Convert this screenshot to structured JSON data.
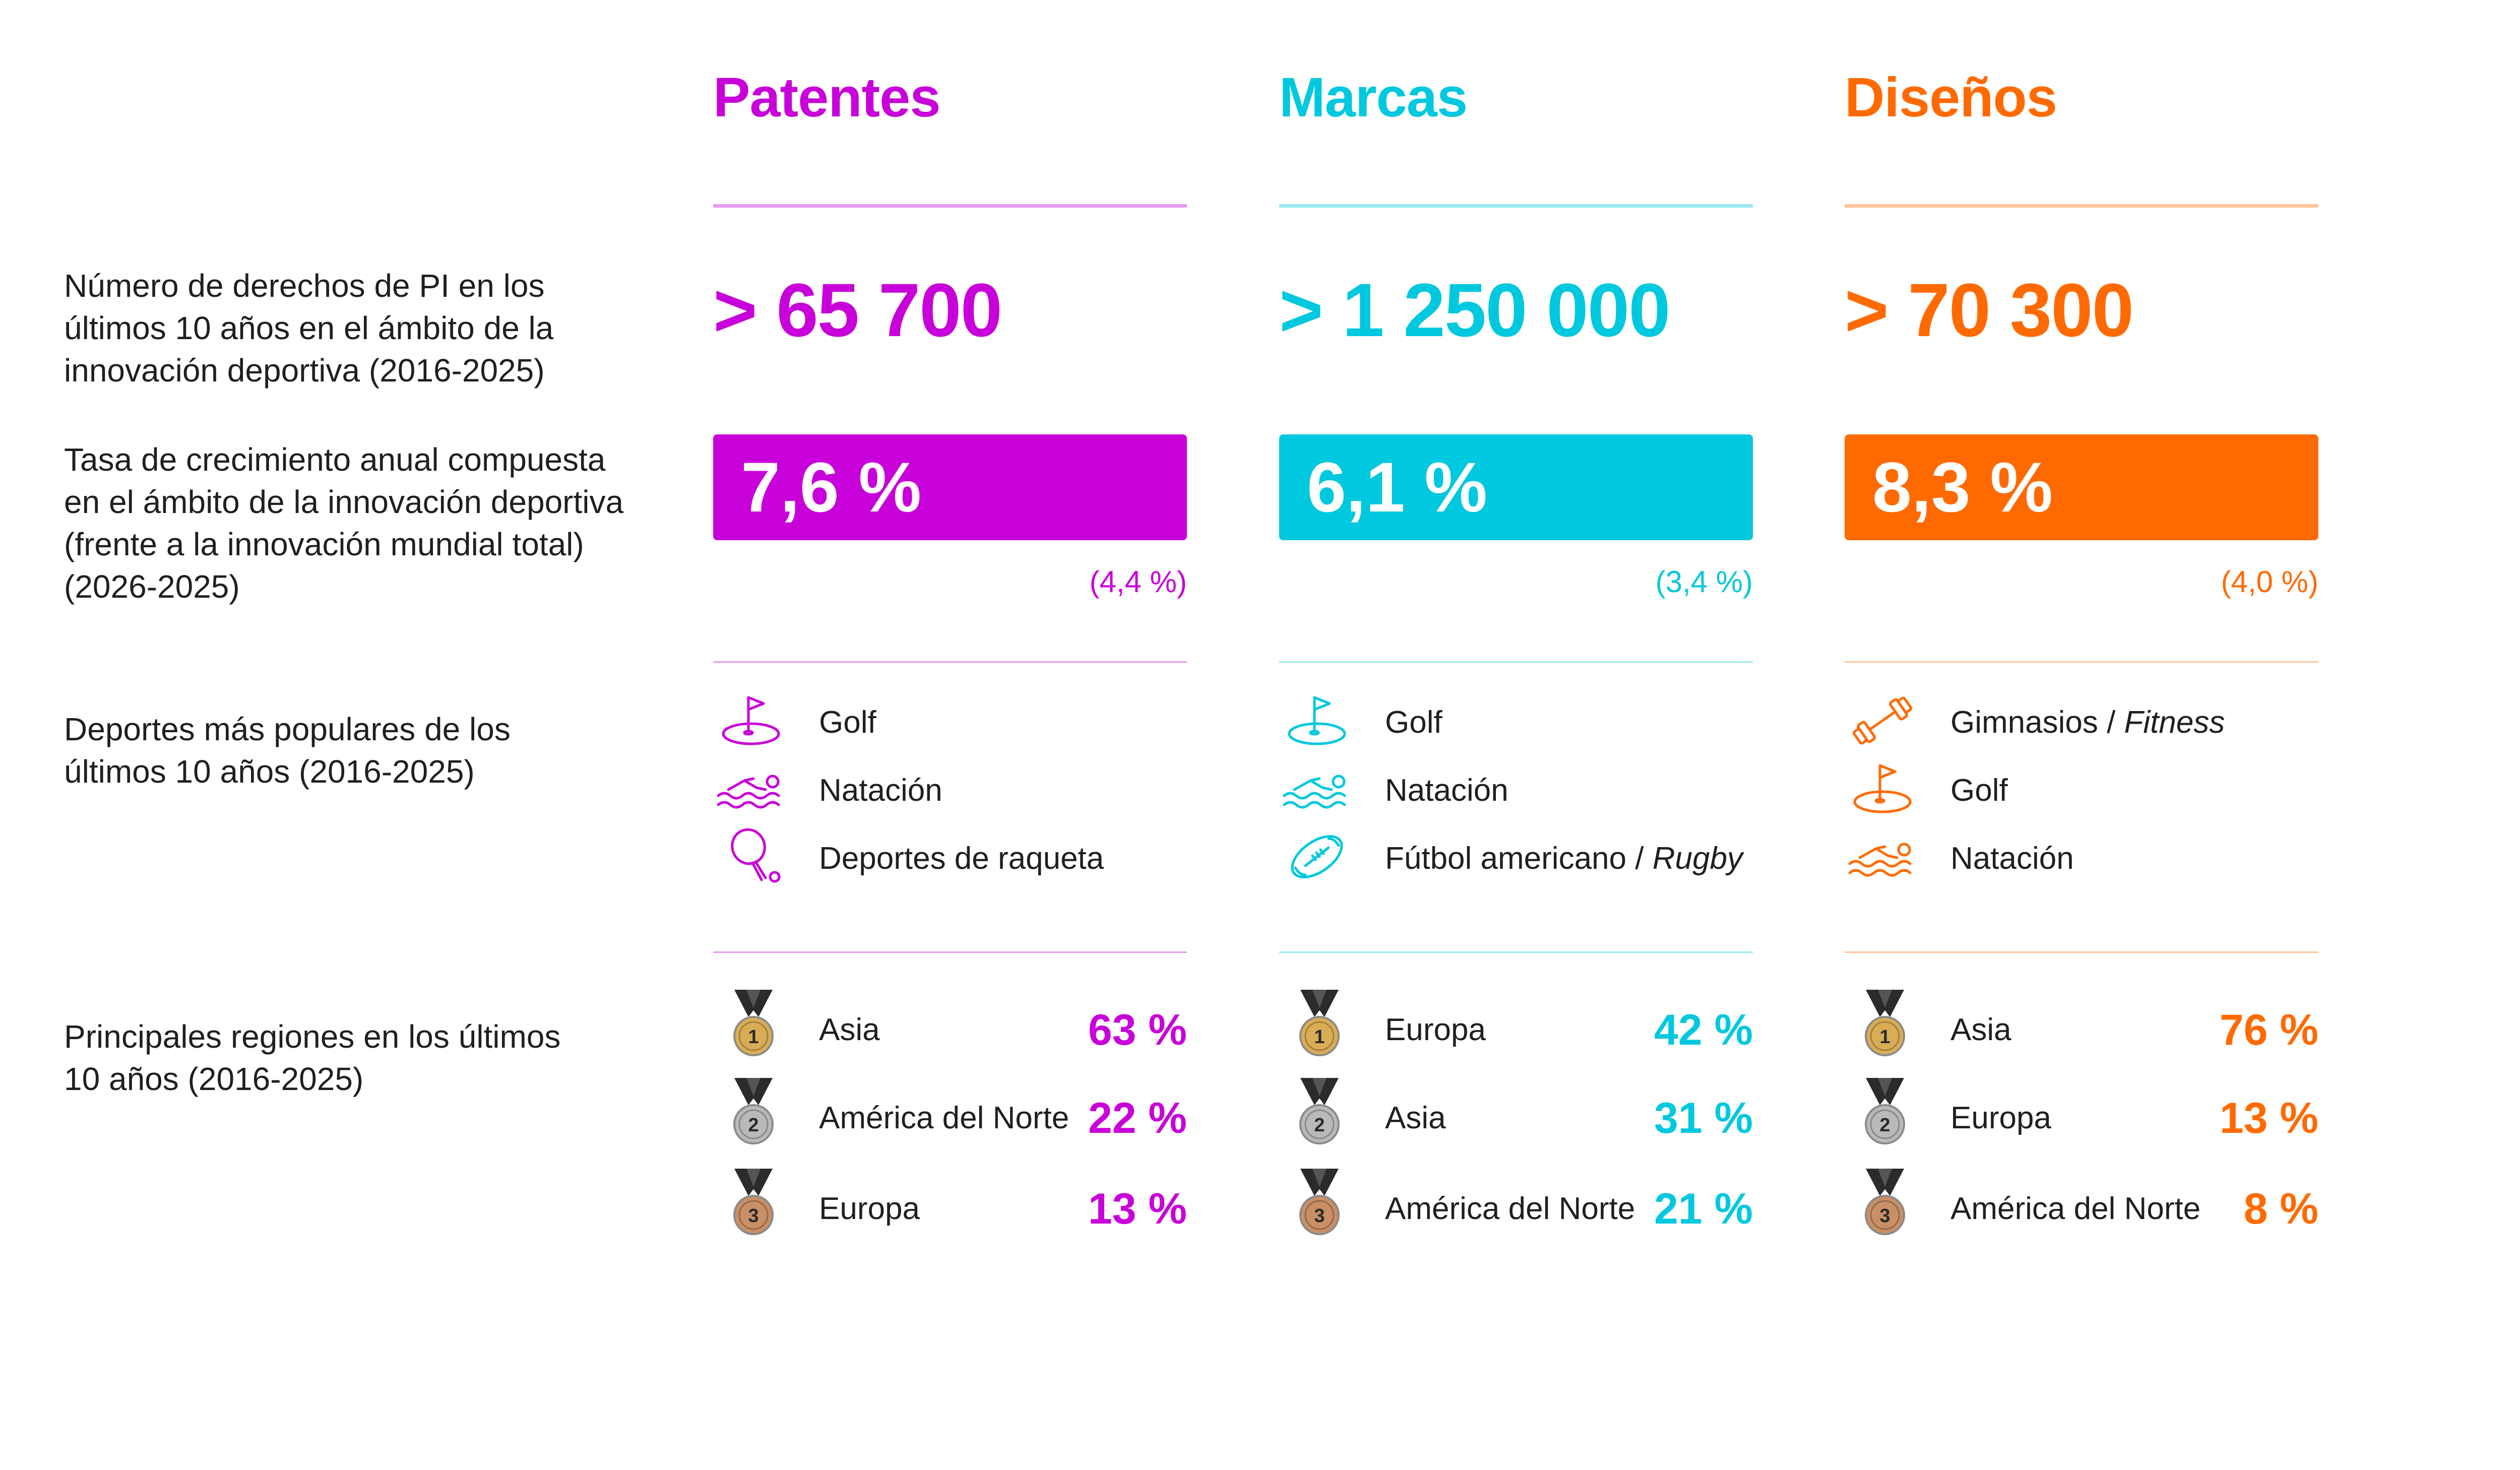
{
  "row_labels": {
    "ip_rights": "Número de derechos de PI en los últimos 10 años en el ámbito de la innovación deportiva (2016-2025)",
    "cagr": "Tasa de crecimiento anual compuesta en el ámbito de la innovación deportiva (frente a la innovación mundial total) (2026-2025)",
    "sports": "Deportes más populares de los últimos 10 años (2016-2025)",
    "regions": "Principales regiones en los últimos 10 años (2016-2025)"
  },
  "columns": [
    {
      "title": "Patentes",
      "color": "#c800d9",
      "light_color": "#e89af1",
      "total": "> 65 700",
      "cagr": "7,6 %",
      "cagr_global": "(4,4 %)",
      "sports": [
        {
          "icon": "golf-icon",
          "label": "Golf",
          "label_italic": ""
        },
        {
          "icon": "swimming-icon",
          "label": "Natación",
          "label_italic": ""
        },
        {
          "icon": "racket-icon",
          "label": "Deportes de raqueta",
          "label_italic": ""
        }
      ],
      "regions": [
        {
          "medal": "1",
          "name": "Asia",
          "pct": "63 %"
        },
        {
          "medal": "2",
          "name": "América del Norte",
          "pct": "22 %"
        },
        {
          "medal": "3",
          "name": "Europa",
          "pct": "13 %"
        }
      ]
    },
    {
      "title": "Marcas",
      "color": "#00c8de",
      "light_color": "#9ae7f0",
      "total": "> 1 250 000",
      "cagr": "6,1 %",
      "cagr_global": "(3,4 %)",
      "sports": [
        {
          "icon": "golf-icon",
          "label": "Golf",
          "label_italic": ""
        },
        {
          "icon": "swimming-icon",
          "label": "Natación",
          "label_italic": ""
        },
        {
          "icon": "rugby-ball-icon",
          "label": "Fútbol americano / ",
          "label_italic": "Rugby"
        }
      ],
      "regions": [
        {
          "medal": "1",
          "name": "Europa",
          "pct": "42 %"
        },
        {
          "medal": "2",
          "name": "Asia",
          "pct": "31 %"
        },
        {
          "medal": "3",
          "name": "América del Norte",
          "pct": "21 %"
        }
      ]
    },
    {
      "title": "Diseños",
      "color": "#ff6a00",
      "light_color": "#ffc49a",
      "total": "> 70 300",
      "cagr": "8,3 %",
      "cagr_global": "(4,0 %)",
      "sports": [
        {
          "icon": "dumbbell-icon",
          "label": "Gimnasios / ",
          "label_italic": "Fitness"
        },
        {
          "icon": "golf-icon",
          "label": "Golf",
          "label_italic": ""
        },
        {
          "icon": "swimming-icon",
          "label": "Natación",
          "label_italic": ""
        }
      ],
      "regions": [
        {
          "medal": "1",
          "name": "Asia",
          "pct": "76 %"
        },
        {
          "medal": "2",
          "name": "Europa",
          "pct": "13 %"
        },
        {
          "medal": "3",
          "name": "América del Norte",
          "pct": "8 %"
        }
      ]
    }
  ],
  "medal_colors": {
    "1": "#d9ad55",
    "2": "#b9b9b9",
    "3": "#c98f66"
  }
}
